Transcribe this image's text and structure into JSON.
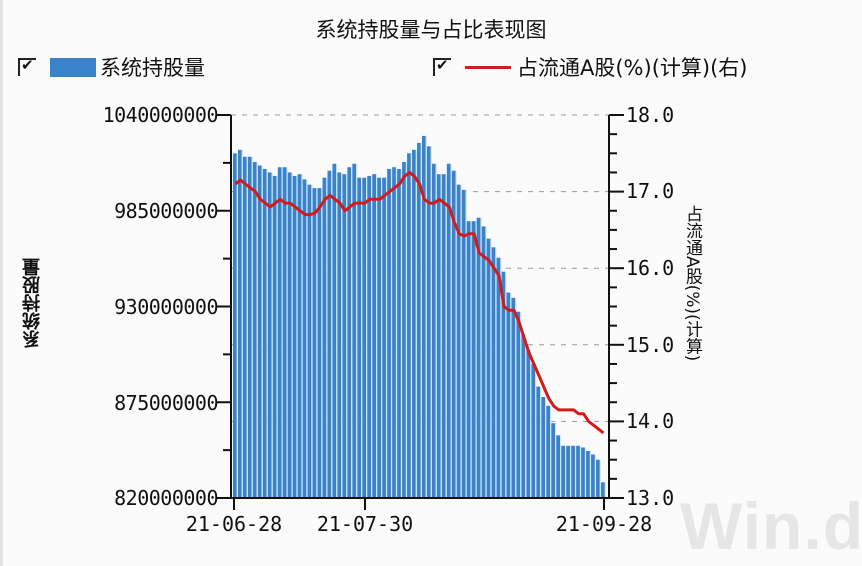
{
  "title": "系统持股量与占比表现图",
  "legend": [
    {
      "label": "系统持股量",
      "checked": true,
      "type": "bar",
      "color": "#3a83cb"
    },
    {
      "label": "占流通A股(%)(计算)(右)",
      "checked": true,
      "type": "line",
      "color": "#d41a1a"
    }
  ],
  "axes": {
    "left_label": "系统持股量",
    "right_label": "占流通A股(%)(计算)",
    "left_ticks": [
      "1040000000",
      "985000000",
      "930000000",
      "875000000",
      "820000000"
    ],
    "right_ticks": [
      "18.0",
      "17.0",
      "16.0",
      "15.0",
      "14.0",
      "13.0"
    ],
    "x_ticks": [
      "21-06-28",
      "21-07-30",
      "21-09-28"
    ]
  },
  "watermark": "Win.d",
  "chart_data": {
    "type": "bar+line",
    "title": "系统持股量与占比表现图",
    "xlabel": "",
    "ylabel": "系统持股量",
    "ylabel_right": "占流通A股(%)(计算)",
    "ylim": [
      820000000,
      1040000000
    ],
    "ylim_right": [
      13.0,
      18.0
    ],
    "x_tick_labels": [
      "21-06-28",
      "21-07-30",
      "21-09-28"
    ],
    "grid": "dashed horizontal at right-axis ticks",
    "legend_position": "top",
    "series": [
      {
        "name": "系统持股量",
        "type": "bar",
        "axis": "left",
        "values": [
          1018000000,
          1020000000,
          1016000000,
          1016000000,
          1013000000,
          1011000000,
          1009000000,
          1007000000,
          1005000000,
          1010000000,
          1010000000,
          1007000000,
          1005000000,
          1006000000,
          1003000000,
          1000000000,
          998000000,
          998000000,
          1004000000,
          1008000000,
          1012000000,
          1007000000,
          1006000000,
          1010000000,
          1012000000,
          1004000000,
          1004000000,
          1005000000,
          1006000000,
          1004000000,
          1004000000,
          1009000000,
          1010000000,
          1009000000,
          1013000000,
          1018000000,
          1020000000,
          1024000000,
          1028000000,
          1022000000,
          1012000000,
          1006000000,
          1006000000,
          1012000000,
          1008000000,
          1000000000,
          997000000,
          979000000,
          979000000,
          981000000,
          976000000,
          969000000,
          964000000,
          958000000,
          950000000,
          938000000,
          935000000,
          927000000,
          914000000,
          905000000,
          897000000,
          884000000,
          878000000,
          873000000,
          863000000,
          856000000,
          850000000,
          850000000,
          850000000,
          850000000,
          849000000,
          847000000,
          845000000,
          842000000,
          829000000
        ],
        "color": "#3a83cb"
      },
      {
        "name": "占流通A股(%)(计算)(右)",
        "type": "line",
        "axis": "right",
        "values": [
          17.1,
          17.15,
          17.1,
          17.05,
          17.0,
          16.9,
          16.85,
          16.8,
          16.85,
          16.9,
          16.85,
          16.85,
          16.8,
          16.75,
          16.7,
          16.7,
          16.72,
          16.8,
          16.9,
          16.95,
          16.9,
          16.85,
          16.75,
          16.8,
          16.85,
          16.85,
          16.85,
          16.9,
          16.9,
          16.9,
          16.95,
          17.0,
          17.05,
          17.1,
          17.2,
          17.25,
          17.2,
          17.1,
          16.9,
          16.85,
          16.85,
          16.9,
          16.85,
          16.8,
          16.6,
          16.45,
          16.42,
          16.45,
          16.45,
          16.2,
          16.15,
          16.1,
          16.0,
          15.9,
          15.5,
          15.45,
          15.45,
          15.3,
          15.1,
          14.9,
          14.75,
          14.6,
          14.45,
          14.3,
          14.2,
          14.15,
          14.15,
          14.15,
          14.15,
          14.1,
          14.1,
          14.0,
          13.95,
          13.9,
          13.85
        ],
        "color": "#d41a1a"
      }
    ]
  }
}
